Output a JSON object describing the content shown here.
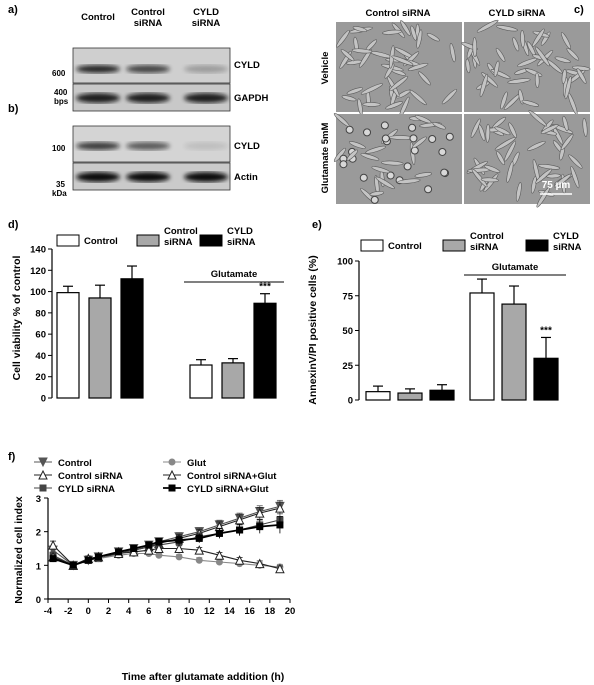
{
  "panel_letters": {
    "a": "a)",
    "b": "b)",
    "c": "c)",
    "d": "d)",
    "e": "e)",
    "f": "f)"
  },
  "blots": {
    "lanes": [
      "Control",
      "Control\nsiRNA",
      "CYLD\nsiRNA"
    ],
    "a": {
      "rows": [
        {
          "label": "CYLD",
          "intensity": [
            0.85,
            0.7,
            0.25
          ]
        },
        {
          "label": "GAPDH",
          "intensity": [
            0.9,
            0.9,
            0.9
          ]
        }
      ],
      "markers": {
        "m600": "600",
        "m400": "400",
        "unit": "bps"
      }
    },
    "b": {
      "rows": [
        {
          "label": "CYLD",
          "intensity": [
            0.75,
            0.6,
            0.1
          ]
        },
        {
          "label": "Actin",
          "intensity": [
            1.0,
            1.0,
            1.0
          ]
        }
      ],
      "markers": {
        "m100": "100",
        "m35": "35",
        "unit": "kDa"
      }
    }
  },
  "micrographs": {
    "columns": [
      "Control siRNA",
      "CYLD siRNA"
    ],
    "rows": [
      "Vehicle",
      "Glutamate 5mM"
    ],
    "scale_bar": "75 µm"
  },
  "legend_bars": {
    "control": "Control",
    "control_sirna": "Control\nsiRNA",
    "cyld_sirna": "CYLD\nsiRNA"
  },
  "colors": {
    "control": "#ffffff",
    "control_sirna": "#a8a8a8",
    "cyld_sirna": "#000000"
  },
  "chart_data": [
    {
      "id": "d",
      "type": "bar",
      "ylabel": "Cell viability % of control",
      "ylim": [
        0,
        140
      ],
      "yticks": [
        0,
        20,
        40,
        60,
        80,
        100,
        120,
        140
      ],
      "bracket_label": "Glutamate",
      "significance": "***",
      "series": [
        {
          "name": "Control",
          "values": [
            99,
            31
          ],
          "errors": [
            6,
            5
          ]
        },
        {
          "name": "Control siRNA",
          "values": [
            94,
            33
          ],
          "errors": [
            12,
            4
          ]
        },
        {
          "name": "CYLD siRNA",
          "values": [
            112,
            89
          ],
          "errors": [
            12,
            9
          ]
        }
      ]
    },
    {
      "id": "e",
      "type": "bar",
      "ylabel": "AnnexinV/PI positive cells (%)",
      "ylim": [
        0,
        100
      ],
      "yticks": [
        0,
        25,
        50,
        75,
        100
      ],
      "bracket_label": "Glutamate",
      "significance": "***",
      "series": [
        {
          "name": "Control",
          "values": [
            6,
            77
          ],
          "errors": [
            4,
            10
          ]
        },
        {
          "name": "Control siRNA",
          "values": [
            5,
            69
          ],
          "errors": [
            3,
            13
          ]
        },
        {
          "name": "CYLD siRNA",
          "values": [
            7,
            30
          ],
          "errors": [
            4,
            15
          ]
        }
      ]
    },
    {
      "id": "f",
      "type": "line",
      "xlabel": "Time after glutamate addition (h)",
      "ylabel": "Normalized cell index",
      "xlim": [
        -4,
        20
      ],
      "ylim": [
        0,
        3
      ],
      "xticks": [
        -4,
        -2,
        0,
        2,
        4,
        6,
        8,
        10,
        12,
        14,
        16,
        18,
        20
      ],
      "yticks": [
        0,
        1,
        2,
        3
      ],
      "x": [
        -3.5,
        -1.5,
        0,
        1,
        3,
        4.5,
        6,
        7,
        9,
        11,
        13,
        15,
        17,
        19
      ],
      "series": [
        {
          "name": "Control",
          "marker": "tri-down-filled",
          "values": [
            1.45,
            1.0,
            1.15,
            1.25,
            1.4,
            1.5,
            1.6,
            1.7,
            1.85,
            2.0,
            2.2,
            2.4,
            2.6,
            2.75
          ],
          "errors": [
            0.1,
            0.03,
            0.08,
            0.08,
            0.08,
            0.08,
            0.1,
            0.1,
            0.12,
            0.12,
            0.14,
            0.15,
            0.17,
            0.18
          ]
        },
        {
          "name": "Control siRNA",
          "marker": "tri-up-open",
          "values": [
            1.6,
            1.0,
            1.2,
            1.25,
            1.4,
            1.45,
            1.55,
            1.65,
            1.8,
            1.95,
            2.15,
            2.35,
            2.55,
            2.7
          ],
          "errors": [
            0.12,
            0.03,
            0.08,
            0.08,
            0.08,
            0.08,
            0.1,
            0.1,
            0.12,
            0.12,
            0.14,
            0.15,
            0.17,
            0.18
          ]
        },
        {
          "name": "CYLD siRNA",
          "marker": "square-filled",
          "values": [
            1.3,
            1.0,
            1.15,
            1.2,
            1.35,
            1.45,
            1.55,
            1.6,
            1.7,
            1.85,
            1.95,
            2.05,
            2.2,
            2.35
          ],
          "errors": [
            0.1,
            0.03,
            0.08,
            0.08,
            0.08,
            0.08,
            0.1,
            0.1,
            0.12,
            0.12,
            0.14,
            0.15,
            0.17,
            0.18
          ]
        },
        {
          "name": "Glut",
          "marker": "circle-filled",
          "values": [
            1.2,
            1.0,
            1.15,
            1.2,
            1.3,
            1.35,
            1.35,
            1.3,
            1.25,
            1.15,
            1.1,
            1.05,
            1.0,
            0.95
          ],
          "errors": [
            0.08,
            0.03,
            0.07,
            0.07,
            0.07,
            0.07,
            0.07,
            0.07,
            0.07,
            0.08,
            0.08,
            0.08,
            0.08,
            0.08
          ]
        },
        {
          "name": "Control siRNA+Glut",
          "marker": "tri-up-open",
          "values": [
            1.25,
            1.0,
            1.2,
            1.25,
            1.35,
            1.4,
            1.45,
            1.5,
            1.5,
            1.45,
            1.3,
            1.15,
            1.05,
            0.9
          ],
          "errors": [
            0.08,
            0.03,
            0.07,
            0.07,
            0.07,
            0.07,
            0.08,
            0.08,
            0.08,
            0.08,
            0.08,
            0.08,
            0.08,
            0.08
          ]
        },
        {
          "name": "CYLD siRNA+Glut",
          "marker": "square-filled",
          "values": [
            1.2,
            1.0,
            1.15,
            1.25,
            1.4,
            1.5,
            1.6,
            1.7,
            1.75,
            1.8,
            1.95,
            2.05,
            2.15,
            2.2
          ],
          "errors": [
            0.08,
            0.03,
            0.07,
            0.07,
            0.08,
            0.08,
            0.1,
            0.1,
            0.12,
            0.13,
            0.15,
            0.17,
            0.2,
            0.25
          ]
        }
      ]
    }
  ]
}
